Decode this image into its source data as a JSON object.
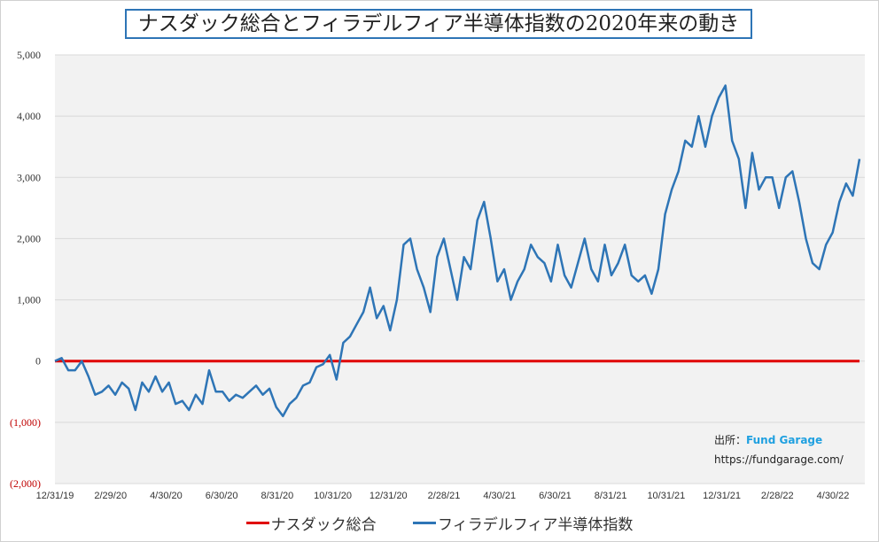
{
  "chart_data": {
    "type": "line",
    "title": "ナスダック総合とフィラデルフィア半導体指数の2020年来の動き",
    "xlabel": "",
    "ylabel": "",
    "ylim": [
      -2000,
      5000
    ],
    "yticks": [
      5000,
      4000,
      3000,
      2000,
      1000,
      0,
      -1000,
      -2000
    ],
    "ytick_labels": [
      "5,000",
      "4,000",
      "3,000",
      "2,000",
      "1,000",
      "0",
      "(1,000)",
      "(2,000)"
    ],
    "xtick_labels": [
      "12/31/19",
      "2/29/20",
      "4/30/20",
      "6/30/20",
      "8/31/20",
      "10/31/20",
      "12/31/20",
      "2/28/21",
      "4/30/21",
      "6/30/21",
      "8/31/21",
      "10/31/21",
      "12/31/21",
      "2/28/22",
      "4/30/22"
    ],
    "x_range_months": [
      0,
      29
    ],
    "grid": true,
    "legend_position": "bottom",
    "series": [
      {
        "name": "ナスダック総合",
        "color": "#e00000",
        "values": [
          0,
          0
        ]
      },
      {
        "name": "フィラデルフィア半導体指数",
        "color": "#2e75b6",
        "values": [
          0,
          50,
          -150,
          -150,
          0,
          -250,
          -550,
          -500,
          -400,
          -550,
          -350,
          -450,
          -800,
          -350,
          -500,
          -250,
          -500,
          -350,
          -700,
          -650,
          -800,
          -550,
          -700,
          -150,
          -500,
          -500,
          -650,
          -550,
          -600,
          -500,
          -400,
          -550,
          -450,
          -750,
          -900,
          -700,
          -600,
          -400,
          -350,
          -100,
          -50,
          100,
          -300,
          300,
          400,
          600,
          800,
          1200,
          700,
          900,
          500,
          1000,
          1900,
          2000,
          1500,
          1200,
          800,
          1700,
          2000,
          1500,
          1000,
          1700,
          1500,
          2300,
          2600,
          2000,
          1300,
          1500,
          1000,
          1300,
          1500,
          1900,
          1700,
          1600,
          1300,
          1900,
          1400,
          1200,
          1600,
          2000,
          1500,
          1300,
          1900,
          1400,
          1600,
          1900,
          1400,
          1300,
          1400,
          1100,
          1500,
          2400,
          2800,
          3100,
          3600,
          3500,
          4000,
          3500,
          4000,
          4300,
          4500,
          3600,
          3300,
          2500,
          3400,
          2800,
          3000,
          3000,
          2500,
          3000,
          3100,
          2600,
          2000,
          1600,
          1500,
          1900,
          2100,
          2600,
          2900,
          2700,
          3300
        ]
      }
    ]
  },
  "source": {
    "label": "出所：",
    "brand": "Fund Garage",
    "url": "https://fundgarage.com/"
  }
}
